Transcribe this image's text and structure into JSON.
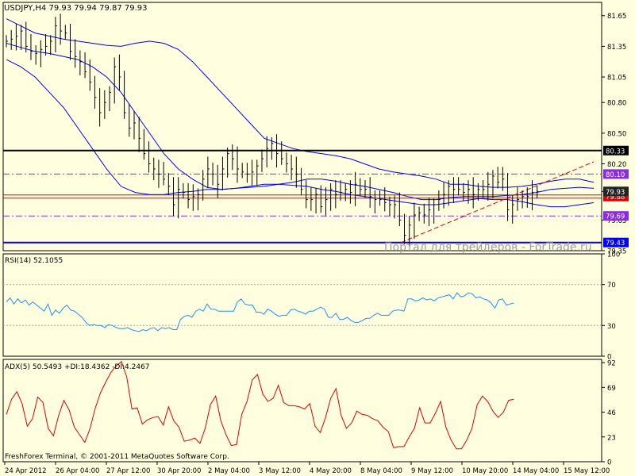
{
  "colors": {
    "background": "#ffffe0",
    "plot_background": "#ffffe0",
    "grid": "#aaaa99",
    "frame": "#000000",
    "text": "#000000",
    "bars": "#000000",
    "bollinger": "#0000ff",
    "rsi": "#1e90ff",
    "adx": "#dd0000",
    "resistance_black": "#000000",
    "purple_level": "#8a2be2",
    "red_level": "#dd0000",
    "blue_level": "#0000ff",
    "trendline": "#dd0000",
    "price_tag_gray": "#222222",
    "watermark": "#a0a0a0"
  },
  "header": {
    "main": "USDJPY,H4  79.93 79.94 79.87 79.93",
    "rsi": "RSI(14) 52.1055",
    "adx": "ADX(5) 50.5493 +DI:18.4362 -DI:4.2467"
  },
  "watermark": "Портал для трейдеров - ForTrade.ru",
  "copyright": "FreshForex Terminal, © 2001-2011 MetaQuotes Software Corp.",
  "chart_data": [
    {
      "type": "candlestick",
      "title": "USDJPY,H4",
      "ylim": [
        79.35,
        81.78
      ],
      "yticks": [
        81.65,
        81.35,
        81.05,
        80.8,
        80.5,
        80.2,
        79.93,
        79.65,
        79.35
      ],
      "ytick_labels": [
        "81.65",
        "81.35",
        "81.05",
        "80.80",
        "80.50",
        "80.20",
        "79.93",
        "79.65",
        "79.35"
      ],
      "x_labels": [
        "24 Apr 2012",
        "26 Apr 04:00",
        "27 Apr 12:00",
        "30 Apr 20:00",
        "2 May 04:00",
        "3 May 12:00",
        "4 May 20:00",
        "8 May 04:00",
        "9 May 12:00",
        "10 May 20:00",
        "14 May 04:00",
        "15 May 12:00"
      ],
      "bar_closes": [
        81.4,
        81.42,
        81.45,
        81.5,
        81.35,
        81.3,
        81.28,
        81.32,
        81.35,
        81.4,
        81.55,
        81.5,
        81.48,
        81.3,
        81.25,
        81.2,
        81.1,
        81.0,
        80.85,
        80.7,
        80.8,
        80.9,
        81.15,
        81.05,
        80.7,
        80.55,
        80.6,
        80.45,
        80.3,
        80.2,
        80.15,
        80.1,
        80.05,
        79.98,
        79.8,
        79.95,
        79.92,
        79.85,
        79.88,
        79.9,
        80.05,
        80.15,
        80.1,
        80.0,
        80.15,
        80.3,
        80.25,
        80.15,
        80.12,
        80.1,
        80.12,
        80.18,
        80.25,
        80.35,
        80.4,
        80.3,
        80.25,
        80.2,
        80.15,
        80.1,
        79.95,
        79.85,
        79.85,
        79.9,
        79.78,
        79.85,
        79.95,
        79.9,
        79.92,
        79.95,
        79.92,
        80.0,
        79.95,
        79.95,
        79.88,
        79.85,
        79.85,
        79.82,
        79.8,
        79.8,
        79.65,
        79.5,
        79.6,
        79.7,
        79.72,
        79.7,
        79.75,
        79.8,
        79.85,
        79.9,
        79.98,
        79.95,
        79.95,
        79.92,
        79.95,
        79.9,
        79.95,
        79.95,
        80.0,
        80.08,
        80.02,
        80.05,
        79.75,
        79.8,
        79.85,
        79.88,
        79.88,
        79.92,
        79.93
      ],
      "bollinger_upper": [
        81.62,
        81.55,
        81.48,
        81.45,
        81.42,
        81.4,
        81.38,
        81.36,
        81.35,
        81.38,
        81.4,
        81.38,
        81.32,
        81.2,
        81.05,
        80.9,
        80.75,
        80.6,
        80.45,
        80.4,
        80.35,
        80.32,
        80.3,
        80.28,
        80.25,
        80.2,
        80.15,
        80.12,
        80.1,
        80.08,
        80.05,
        80.0,
        80.0,
        79.98,
        79.97,
        79.97,
        79.98,
        80.0,
        80.03,
        80.05,
        80.05,
        80.02
      ],
      "bollinger_middle": [
        81.38,
        81.34,
        81.3,
        81.28,
        81.25,
        81.22,
        81.15,
        81.05,
        80.9,
        80.7,
        80.5,
        80.3,
        80.15,
        80.05,
        79.97,
        79.95,
        79.96,
        79.97,
        79.98,
        80.0,
        80.02,
        80.05,
        80.05,
        80.03,
        80.0,
        79.98,
        79.95,
        79.92,
        79.88,
        79.85,
        79.85,
        79.87,
        79.88,
        79.88,
        79.88,
        79.89,
        79.9,
        79.92,
        79.95,
        79.96,
        79.97,
        79.96
      ],
      "bollinger_lower": [
        81.22,
        81.15,
        81.05,
        80.9,
        80.75,
        80.55,
        80.35,
        80.15,
        79.98,
        79.92,
        79.9,
        79.9,
        79.92,
        79.93,
        79.95,
        79.95,
        79.96,
        79.98,
        80.0,
        80.0,
        79.99,
        79.98,
        79.95,
        79.93,
        79.9,
        79.88,
        79.86,
        79.84,
        79.82,
        79.8,
        79.8,
        79.82,
        79.84,
        79.86,
        79.85,
        79.85,
        79.83,
        79.8,
        79.78,
        79.78,
        79.8,
        79.82
      ],
      "levels": [
        {
          "name": "black",
          "value": 80.33,
          "label": "80.33",
          "style": "solid"
        },
        {
          "name": "purple-upper",
          "value": 80.1,
          "label": "80.10",
          "style": "dashdot"
        },
        {
          "name": "red",
          "value": 79.88,
          "label": "79.88",
          "style": "double"
        },
        {
          "name": "purple-lower",
          "value": 79.69,
          "label": "79.69",
          "style": "dashdot"
        },
        {
          "name": "blue",
          "value": 79.43,
          "label": "79.43",
          "style": "solid"
        }
      ],
      "current_price": {
        "value": 79.93,
        "label": "79.93"
      },
      "trendline": {
        "from_index": 84,
        "from_value": 79.43,
        "to_index": 125,
        "to_value": 80.22
      }
    },
    {
      "type": "line",
      "title": "RSI(14)",
      "ylim": [
        0,
        100
      ],
      "yticks": [
        100,
        70,
        30,
        0
      ],
      "ytick_labels": [
        "100",
        "70",
        "30",
        "0"
      ],
      "series": [
        {
          "name": "RSI(14)",
          "values": [
            53,
            57,
            51,
            56,
            52,
            55,
            50,
            53,
            50,
            47,
            44,
            51,
            40,
            45,
            42,
            47,
            50,
            45,
            44,
            41,
            38,
            33,
            30,
            31,
            30,
            30,
            28,
            31,
            30,
            28,
            27,
            27,
            28,
            26,
            25,
            24,
            26,
            25,
            27,
            28,
            25,
            28,
            27,
            28,
            26,
            26,
            36,
            39,
            40,
            38,
            44,
            46,
            44,
            51,
            46,
            46,
            44,
            44,
            44,
            44,
            44,
            53,
            56,
            51,
            50,
            50,
            43,
            43,
            41,
            46,
            44,
            41,
            39,
            40,
            40,
            45,
            46,
            44,
            43,
            41,
            44,
            44,
            46,
            48,
            46,
            38,
            38,
            42,
            36,
            36,
            38,
            35,
            33,
            33,
            35,
            37,
            37,
            40,
            42,
            40,
            40,
            40,
            44,
            45,
            45,
            44,
            56,
            56,
            54,
            55,
            57,
            55,
            56,
            54,
            57,
            58,
            59,
            60,
            56,
            62,
            58,
            59,
            62,
            61,
            57,
            58,
            56,
            55,
            52,
            47,
            55,
            56,
            50,
            51,
            52
          ]
        }
      ]
    },
    {
      "type": "line",
      "title": "ADX(5)",
      "ylim": [
        0,
        95
      ],
      "yticks": [
        92,
        69,
        46,
        23,
        0
      ],
      "ytick_labels": [
        "92",
        "69",
        "46",
        "23",
        "0"
      ],
      "series": [
        {
          "name": "ADX(5)",
          "values": [
            44,
            58,
            65,
            54,
            33,
            40,
            60,
            55,
            31,
            24,
            43,
            57,
            48,
            32,
            25,
            18,
            31,
            50,
            64,
            74,
            83,
            89,
            93,
            79,
            49,
            50,
            35,
            39,
            41,
            42,
            34,
            51,
            38,
            32,
            19,
            20,
            22,
            17,
            31,
            53,
            61,
            38,
            25,
            15,
            16,
            44,
            56,
            76,
            81,
            63,
            56,
            59,
            71,
            55,
            52,
            52,
            51,
            49,
            54,
            33,
            27,
            41,
            59,
            68,
            43,
            31,
            36,
            47,
            44,
            43,
            40,
            38,
            32,
            28,
            13,
            14,
            14,
            23,
            31,
            50,
            36,
            36,
            45,
            56,
            32,
            20,
            12,
            12,
            20,
            31,
            53,
            61,
            56,
            47,
            41,
            46,
            57,
            58
          ]
        }
      ]
    }
  ]
}
